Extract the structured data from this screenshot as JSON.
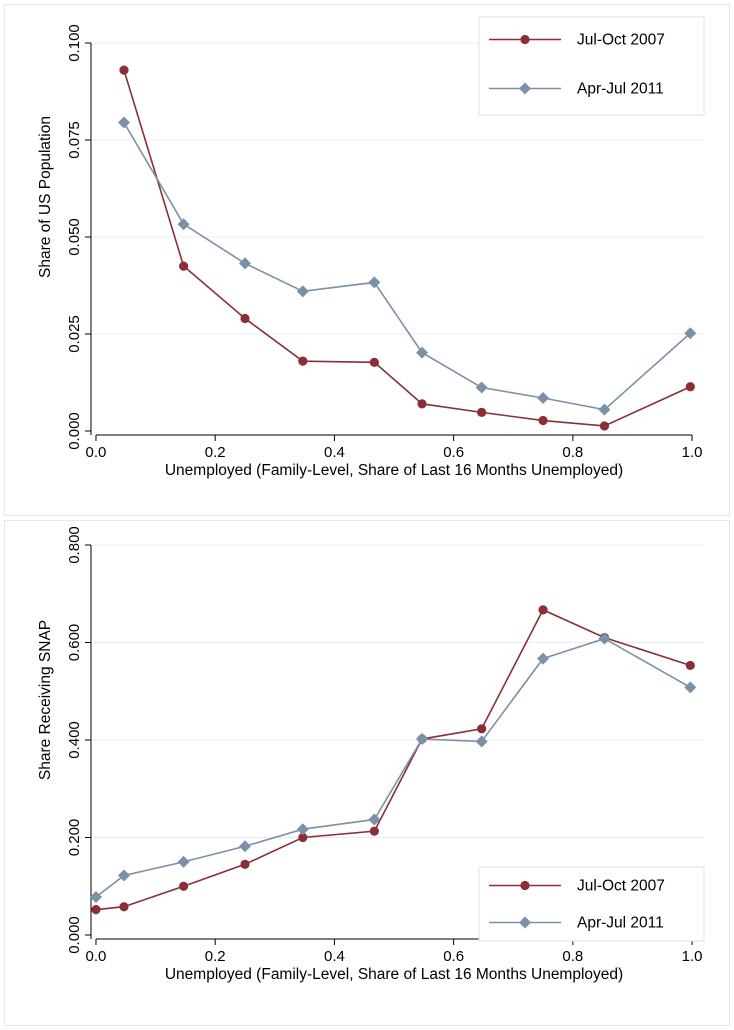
{
  "chart_data": [
    {
      "type": "line",
      "title": "",
      "xlabel": "Unemployed (Family-Level, Share of Last 16 Months Unemployed)",
      "ylabel": "Share of US Population",
      "xlim": [
        0.0,
        1.0
      ],
      "ylim": [
        0.0,
        0.1
      ],
      "x_ticks": [
        "0.0",
        "0.2",
        "0.4",
        "0.6",
        "0.8",
        "1.0"
      ],
      "y_ticks": [
        "0.000",
        "0.025",
        "0.050",
        "0.075",
        "0.100"
      ],
      "grid": true,
      "legend_position": "top-right",
      "series": [
        {
          "name": "Jul-Oct 2007",
          "marker": "circle",
          "color": "#8b2e35",
          "x": [
            0.047,
            0.147,
            0.25,
            0.347,
            0.467,
            0.547,
            0.647,
            0.75,
            0.853,
            0.997
          ],
          "y": [
            0.093,
            0.0425,
            0.029,
            0.018,
            0.0177,
            0.007,
            0.0048,
            0.0027,
            0.0013,
            0.0114
          ]
        },
        {
          "name": "Apr-Jul 2011",
          "marker": "diamond",
          "color": "#7b91a8",
          "x": [
            0.047,
            0.147,
            0.25,
            0.347,
            0.467,
            0.547,
            0.647,
            0.75,
            0.853,
            0.997
          ],
          "y": [
            0.0795,
            0.0533,
            0.0432,
            0.036,
            0.0383,
            0.0202,
            0.0112,
            0.0085,
            0.0055,
            0.0252
          ]
        }
      ]
    },
    {
      "type": "line",
      "title": "",
      "xlabel": "Unemployed (Family-Level, Share of Last 16 Months Unemployed)",
      "ylabel": "Share Receiving SNAP",
      "xlim": [
        0.0,
        1.0
      ],
      "ylim": [
        0.0,
        0.8
      ],
      "x_ticks": [
        "0.0",
        "0.2",
        "0.4",
        "0.6",
        "0.8",
        "1.0"
      ],
      "y_ticks": [
        "0.000",
        "0.200",
        "0.400",
        "0.600",
        "0.800"
      ],
      "grid": true,
      "legend_position": "bottom-right",
      "series": [
        {
          "name": "Jul-Oct 2007",
          "marker": "circle",
          "color": "#8b2e35",
          "x": [
            0.0,
            0.047,
            0.147,
            0.25,
            0.347,
            0.467,
            0.547,
            0.647,
            0.75,
            0.853,
            0.997
          ],
          "y": [
            0.052,
            0.058,
            0.1,
            0.145,
            0.2,
            0.213,
            0.402,
            0.423,
            0.667,
            0.61,
            0.553
          ]
        },
        {
          "name": "Apr-Jul 2011",
          "marker": "diamond",
          "color": "#7b91a8",
          "x": [
            0.0,
            0.047,
            0.147,
            0.25,
            0.347,
            0.467,
            0.547,
            0.647,
            0.75,
            0.853,
            0.997
          ],
          "y": [
            0.078,
            0.122,
            0.15,
            0.182,
            0.217,
            0.237,
            0.402,
            0.397,
            0.567,
            0.608,
            0.508
          ]
        }
      ]
    }
  ]
}
